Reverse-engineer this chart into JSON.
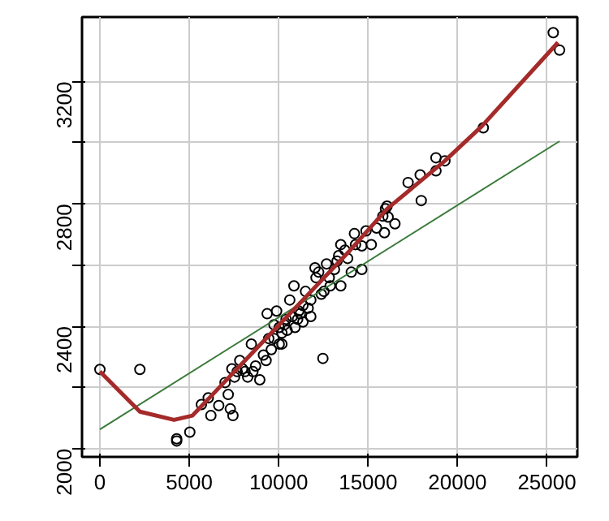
{
  "chart_data": {
    "type": "scatter",
    "grid": true,
    "xlim": [
      -1000,
      26700
    ],
    "ylim": [
      1973,
      3411
    ],
    "xticks": [
      0,
      5000,
      10000,
      15000,
      20000,
      25000
    ],
    "yticks": [
      2000,
      {
        "value": 2200,
        "label": null
      },
      2400,
      {
        "value": 2600,
        "label": null
      },
      2800,
      {
        "value": 3000,
        "label": null
      },
      3200
    ],
    "series": [
      {
        "color": "#000000",
        "marker": "circle",
        "x": [
          0,
          2235,
          4294,
          4294,
          5029,
          5676,
          6059,
          6206,
          6647,
          7000,
          7176,
          7294,
          7441,
          7382,
          7824,
          8265,
          8471,
          8706,
          8941,
          9147,
          9353,
          9441,
          9735,
          9882,
          10029,
          10176,
          10412,
          10618,
          10853,
          11118,
          11353,
          11500,
          11647,
          11794,
          12029,
          12235,
          12471,
          12529,
          12676,
          12882,
          13118,
          13353,
          13471,
          13471,
          13706,
          14059,
          14235,
          14647,
          14647,
          14882,
          15176,
          15824,
          15912,
          15971,
          16118,
          16500,
          17235,
          17912,
          17971,
          18794,
          18794,
          19294,
          21441,
          25353,
          25706,
          9735,
          10029,
          10176,
          10324,
          10471,
          10765,
          10912,
          11059,
          11206,
          9588,
          9294,
          8559,
          8118,
          7971,
          7676,
          7529,
          11353,
          11794,
          12088,
          12382,
          12824,
          13265,
          13853,
          14294,
          15471,
          16059
        ],
        "values": [
          2259,
          2259,
          2032,
          2025,
          2054,
          2144,
          2166,
          2108,
          2141,
          2216,
          2177,
          2130,
          2108,
          2261,
          2288,
          2234,
          2342,
          2270,
          2225,
          2306,
          2441,
          2360,
          2405,
          2450,
          2342,
          2378,
          2423,
          2486,
          2532,
          2450,
          2414,
          2514,
          2459,
          2432,
          2591,
          2577,
          2295,
          2514,
          2604,
          2532,
          2586,
          2631,
          2532,
          2667,
          2649,
          2577,
          2703,
          2586,
          2663,
          2712,
          2667,
          2760,
          2706,
          2784,
          2757,
          2735,
          2870,
          2895,
          2811,
          2951,
          2908,
          2941,
          3049,
          3360,
          3303,
          2360,
          2396,
          2342,
          2405,
          2387,
          2432,
          2396,
          2423,
          2441,
          2324,
          2288,
          2252,
          2252,
          2261,
          2252,
          2234,
          2468,
          2486,
          2559,
          2505,
          2559,
          2613,
          2622,
          2667,
          2721,
          2793
        ]
      },
      {
        "type": "line",
        "marker": "none",
        "color": "#3a7a3a",
        "x": [
          0,
          25706
        ],
        "values": [
          2063,
          3005
        ]
      },
      {
        "type": "line",
        "marker": "none",
        "color": "#a52a2a",
        "x": [
          0,
          2235,
          4147,
          5176,
          6206,
          7529,
          9588,
          11353,
          14000,
          16059,
          19294,
          21353,
          25618
        ],
        "values": [
          2252,
          2121,
          2094,
          2108,
          2171,
          2252,
          2378,
          2486,
          2649,
          2784,
          2941,
          3054,
          3328
        ]
      }
    ]
  }
}
